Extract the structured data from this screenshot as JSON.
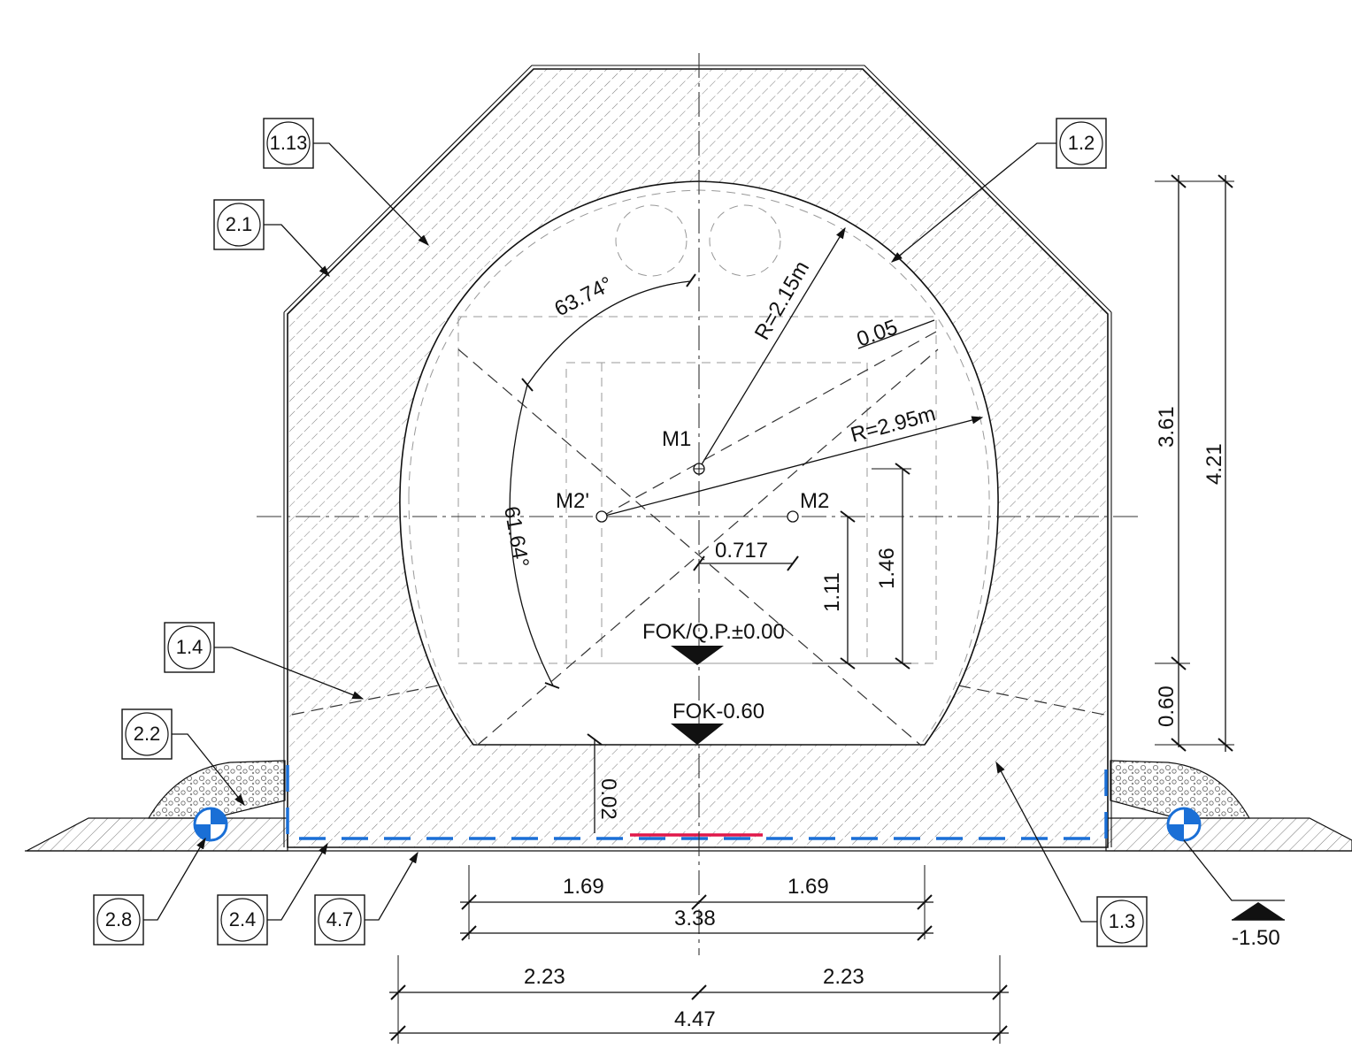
{
  "colors": {
    "line": "#111111",
    "hatch": "#555555",
    "waterproofing": "#1a6fd6",
    "red_strip": "#e0184a",
    "drain": "#1a6fd6"
  },
  "labels": {
    "radius_inner": "R=2.15m",
    "radius_outer": "R=2.95m",
    "angle_top": "63.74°",
    "angle_side": "61.64°",
    "center_m1": "M1",
    "center_m2_left": "M2'",
    "center_m2_right": "M2",
    "offset_005": "0.05",
    "offset_0717": "0.717",
    "dim_111": "1.11",
    "dim_146": "1.46",
    "dim_361": "3.61",
    "dim_421": "4.21",
    "dim_060": "0.60",
    "dim_002": "0.02",
    "level_qp": "FOK/Q.P.±0.00",
    "level_fok": "FOK-0.60",
    "level_ground": "-1.50"
  },
  "bottom_dims": {
    "inner_left": "1.69",
    "inner_right": "1.69",
    "inner_total": "3.38",
    "outer_left": "2.23",
    "outer_right": "2.23",
    "outer_total": "4.47"
  },
  "tags": {
    "t113": "1.13",
    "t21": "2.1",
    "t12": "1.2",
    "t14": "1.4",
    "t22": "2.2",
    "t28": "2.8",
    "t24": "2.4",
    "t47": "4.7",
    "t13": "1.3"
  }
}
